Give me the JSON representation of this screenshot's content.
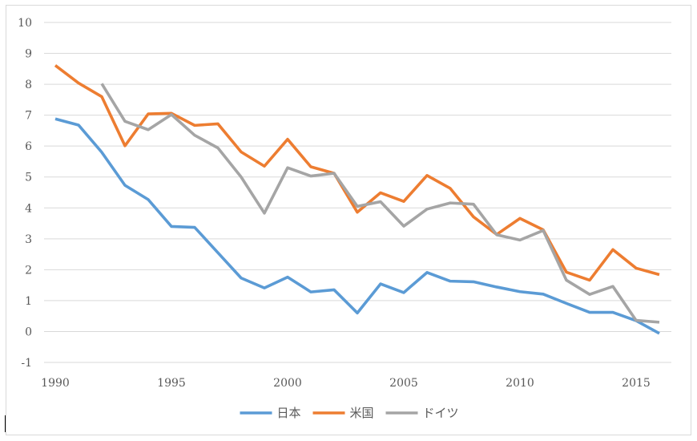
{
  "chart_data": {
    "type": "line",
    "title": "",
    "xlabel": "",
    "ylabel": "",
    "x": [
      1990,
      1991,
      1992,
      1993,
      1994,
      1995,
      1996,
      1997,
      1998,
      1999,
      2000,
      2001,
      2002,
      2003,
      2004,
      2005,
      2006,
      2007,
      2008,
      2009,
      2010,
      2011,
      2012,
      2013,
      2014,
      2015,
      2016
    ],
    "xlim": [
      1990,
      2016
    ],
    "ylim": [
      -1,
      10
    ],
    "y_ticks": [
      "-1",
      "0",
      "1",
      "2",
      "3",
      "4",
      "5",
      "6",
      "7",
      "8",
      "9",
      "10"
    ],
    "x_ticks": [
      "1990",
      "1995",
      "2000",
      "2005",
      "2010",
      "2015"
    ],
    "grid": true,
    "legend_position": "bottom",
    "series": [
      {
        "name": "日本",
        "color": "#5b9bd5",
        "values": [
          6.88,
          6.68,
          5.8,
          4.73,
          4.27,
          3.4,
          3.37,
          2.55,
          1.73,
          1.41,
          1.76,
          1.28,
          1.35,
          0.6,
          1.54,
          1.26,
          1.91,
          1.63,
          1.61,
          1.44,
          1.29,
          1.21,
          0.91,
          0.62,
          0.62,
          0.35,
          -0.06
        ]
      },
      {
        "name": "米国",
        "color": "#ed7d31",
        "values": [
          8.61,
          8.04,
          7.6,
          6.01,
          7.04,
          7.06,
          6.67,
          6.72,
          5.81,
          5.35,
          6.22,
          5.33,
          5.12,
          3.86,
          4.49,
          4.21,
          5.05,
          4.63,
          3.71,
          3.14,
          3.66,
          3.29,
          1.92,
          1.66,
          2.65,
          2.05,
          1.84
        ]
      },
      {
        "name": "ドイツ",
        "color": "#a5a5a5",
        "values": [
          null,
          null,
          8.02,
          6.8,
          6.53,
          7.02,
          6.35,
          5.94,
          5.0,
          3.83,
          5.3,
          5.03,
          5.12,
          4.05,
          4.2,
          3.41,
          3.96,
          4.16,
          4.12,
          3.13,
          2.96,
          3.27,
          1.66,
          1.2,
          1.46,
          0.36,
          0.3
        ]
      }
    ]
  }
}
